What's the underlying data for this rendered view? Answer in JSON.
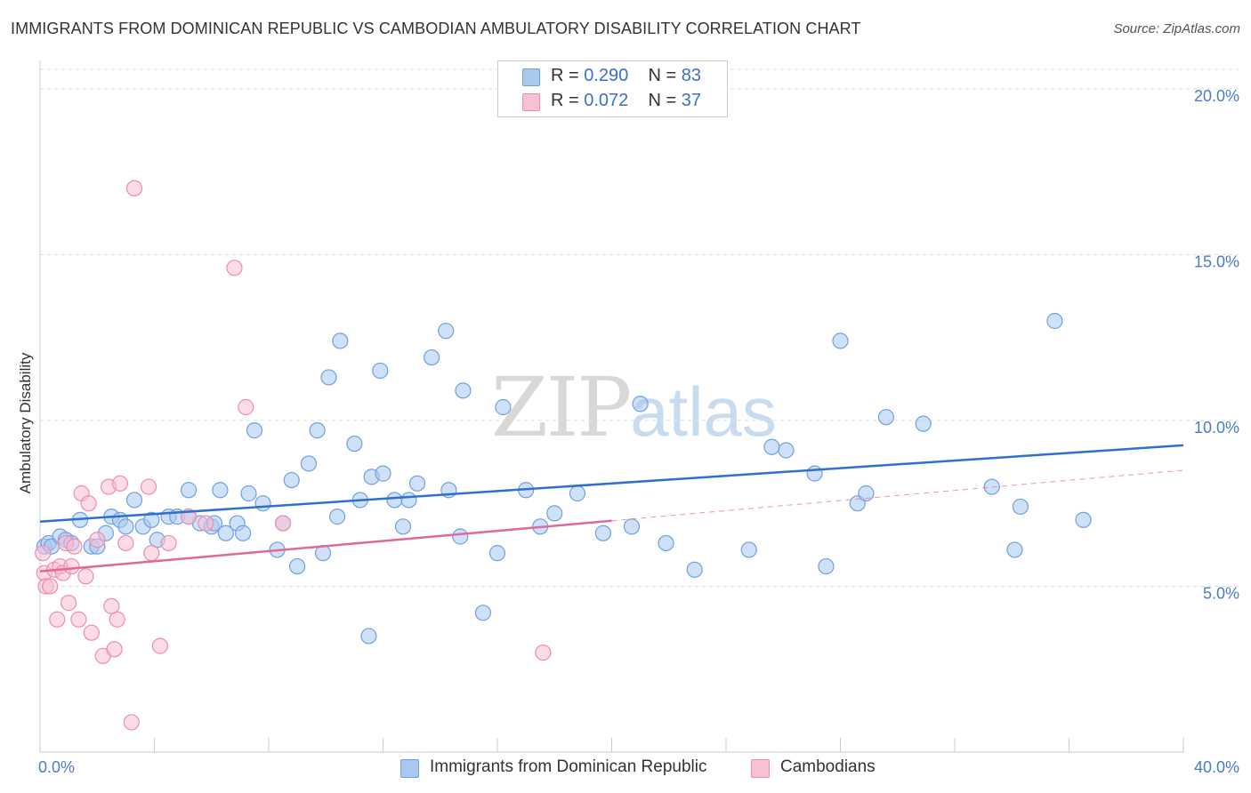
{
  "chart_data": {
    "type": "scatter",
    "title": "IMMIGRANTS FROM DOMINICAN REPUBLIC VS CAMBODIAN AMBULATORY DISABILITY CORRELATION CHART",
    "source": "Source: ZipAtlas.com",
    "ylabel": "Ambulatory Disability",
    "xlabel": "",
    "xlim": [
      0,
      40
    ],
    "ylim": [
      0,
      20.8
    ],
    "x_tick_labels": [
      "0.0%",
      "40.0%"
    ],
    "y_ticks": [
      5,
      10,
      15,
      20
    ],
    "y_tick_labels": [
      "5.0%",
      "10.0%",
      "15.0%",
      "20.0%"
    ],
    "grid": "horizontal dashed",
    "legend_position": "top-center",
    "watermark": {
      "zip": "ZIP",
      "atlas": "atlas"
    },
    "series": [
      {
        "name": "Immigrants from Dominican Republic",
        "color": "#6fa0e0",
        "fill": "#a8c8f0",
        "line_color": "#2f6fce",
        "R": "0.290",
        "N": "83",
        "trend": {
          "x": [
            0,
            40
          ],
          "y": [
            6.95,
            9.25
          ],
          "dashed_from": null
        },
        "points": [
          [
            0.15,
            6.2
          ],
          [
            0.3,
            6.3
          ],
          [
            0.4,
            6.2
          ],
          [
            0.7,
            6.5
          ],
          [
            0.9,
            6.4
          ],
          [
            1.1,
            6.3
          ],
          [
            1.4,
            7.0
          ],
          [
            1.8,
            6.2
          ],
          [
            2.0,
            6.2
          ],
          [
            2.3,
            6.6
          ],
          [
            2.5,
            7.1
          ],
          [
            2.8,
            7.0
          ],
          [
            3.0,
            6.8
          ],
          [
            3.3,
            7.6
          ],
          [
            3.6,
            6.8
          ],
          [
            3.9,
            7.0
          ],
          [
            4.1,
            6.4
          ],
          [
            4.5,
            7.1
          ],
          [
            4.8,
            7.1
          ],
          [
            5.2,
            7.1
          ],
          [
            5.2,
            7.9
          ],
          [
            5.6,
            6.9
          ],
          [
            6.0,
            6.8
          ],
          [
            6.1,
            6.9
          ],
          [
            6.3,
            7.9
          ],
          [
            6.5,
            6.6
          ],
          [
            6.9,
            6.9
          ],
          [
            7.1,
            6.6
          ],
          [
            7.3,
            7.8
          ],
          [
            7.5,
            9.7
          ],
          [
            7.8,
            7.5
          ],
          [
            8.3,
            6.1
          ],
          [
            8.5,
            6.9
          ],
          [
            8.8,
            8.2
          ],
          [
            9.0,
            5.6
          ],
          [
            9.4,
            8.7
          ],
          [
            9.7,
            9.7
          ],
          [
            9.9,
            6.0
          ],
          [
            10.1,
            11.3
          ],
          [
            10.4,
            7.1
          ],
          [
            10.5,
            12.4
          ],
          [
            11.0,
            9.3
          ],
          [
            11.2,
            7.6
          ],
          [
            11.5,
            3.5
          ],
          [
            11.6,
            8.3
          ],
          [
            11.9,
            11.5
          ],
          [
            12.0,
            8.4
          ],
          [
            12.4,
            7.6
          ],
          [
            12.7,
            6.8
          ],
          [
            12.9,
            7.6
          ],
          [
            13.2,
            8.1
          ],
          [
            13.7,
            11.9
          ],
          [
            14.2,
            12.7
          ],
          [
            14.3,
            7.9
          ],
          [
            14.7,
            6.5
          ],
          [
            14.8,
            10.9
          ],
          [
            15.5,
            4.2
          ],
          [
            16.0,
            6.0
          ],
          [
            16.2,
            10.4
          ],
          [
            17.0,
            7.9
          ],
          [
            17.5,
            6.8
          ],
          [
            18.0,
            7.2
          ],
          [
            18.8,
            7.8
          ],
          [
            19.7,
            6.6
          ],
          [
            20.7,
            6.8
          ],
          [
            21.0,
            10.5
          ],
          [
            21.9,
            6.3
          ],
          [
            22.9,
            5.5
          ],
          [
            24.8,
            6.1
          ],
          [
            25.6,
            9.2
          ],
          [
            26.1,
            9.1
          ],
          [
            27.1,
            8.4
          ],
          [
            27.5,
            5.6
          ],
          [
            28.0,
            12.4
          ],
          [
            28.6,
            7.5
          ],
          [
            28.9,
            7.8
          ],
          [
            29.6,
            10.1
          ],
          [
            30.9,
            9.9
          ],
          [
            33.3,
            8.0
          ],
          [
            34.1,
            6.1
          ],
          [
            34.3,
            7.4
          ],
          [
            35.5,
            13.0
          ],
          [
            36.5,
            7.0
          ]
        ]
      },
      {
        "name": "Cambodians",
        "color": "#f08cac",
        "fill": "#f8c0d4",
        "line_color": "#e0689a",
        "R": "0.072",
        "N": "37",
        "trend": {
          "x": [
            0,
            40
          ],
          "y": [
            5.45,
            8.5
          ],
          "dashed_from": 20
        },
        "points": [
          [
            0.1,
            6.0
          ],
          [
            0.15,
            5.4
          ],
          [
            0.2,
            5.0
          ],
          [
            0.35,
            5.0
          ],
          [
            0.5,
            5.5
          ],
          [
            0.6,
            4.0
          ],
          [
            0.7,
            5.6
          ],
          [
            0.8,
            5.4
          ],
          [
            0.9,
            6.3
          ],
          [
            1.0,
            4.5
          ],
          [
            1.1,
            5.6
          ],
          [
            1.2,
            6.2
          ],
          [
            1.35,
            4.0
          ],
          [
            1.45,
            7.8
          ],
          [
            1.6,
            5.3
          ],
          [
            1.7,
            7.5
          ],
          [
            1.8,
            3.6
          ],
          [
            2.0,
            6.4
          ],
          [
            2.2,
            2.9
          ],
          [
            2.4,
            8.0
          ],
          [
            2.5,
            4.4
          ],
          [
            2.6,
            3.1
          ],
          [
            2.7,
            4.0
          ],
          [
            2.8,
            8.1
          ],
          [
            3.0,
            6.3
          ],
          [
            3.2,
            0.9
          ],
          [
            3.3,
            17.0
          ],
          [
            3.8,
            8.0
          ],
          [
            3.9,
            6.0
          ],
          [
            4.2,
            3.2
          ],
          [
            4.5,
            6.3
          ],
          [
            5.2,
            7.1
          ],
          [
            5.8,
            6.9
          ],
          [
            6.8,
            14.6
          ],
          [
            7.2,
            10.4
          ],
          [
            8.5,
            6.9
          ],
          [
            17.6,
            3.0
          ]
        ]
      }
    ]
  }
}
